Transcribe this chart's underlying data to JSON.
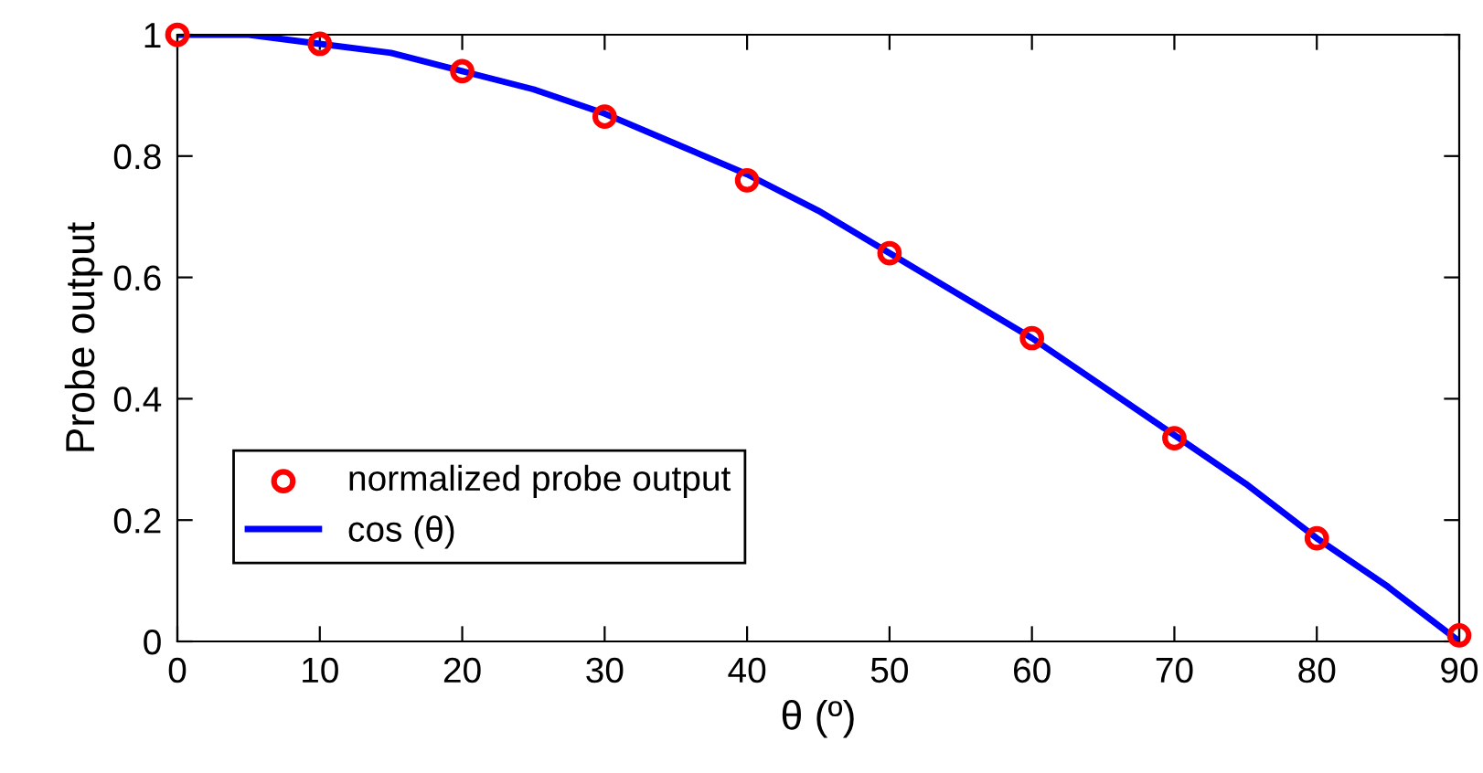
{
  "chart_data": {
    "type": "line",
    "xlabel": "θ (º)",
    "ylabel": "Probe output",
    "xlim": [
      0,
      90
    ],
    "ylim": [
      0,
      1
    ],
    "xticks": [
      0,
      10,
      20,
      30,
      40,
      50,
      60,
      70,
      80,
      90
    ],
    "yticks": [
      0,
      0.2,
      0.4,
      0.6,
      0.8,
      1
    ],
    "grid": false,
    "legend": "bottom left",
    "series": [
      {
        "name": "normalized probe output",
        "type": "scatter",
        "marker": "circle",
        "color": "#ff0000",
        "x": [
          0,
          10,
          20,
          30,
          40,
          50,
          60,
          70,
          80,
          90
        ],
        "values": [
          1.0,
          0.985,
          0.94,
          0.865,
          0.76,
          0.64,
          0.5,
          0.335,
          0.17,
          0.01
        ]
      },
      {
        "name": "cos (θ)",
        "marker": "none",
        "line_style": "solid",
        "color": "#0000ff",
        "x": [
          0,
          5,
          10,
          15,
          20,
          25,
          30,
          35,
          40,
          45,
          50,
          55,
          60,
          65,
          70,
          75,
          80,
          85,
          90
        ],
        "values": [
          1.0,
          1.0,
          0.985,
          0.97,
          0.94,
          0.91,
          0.87,
          0.82,
          0.77,
          0.71,
          0.64,
          0.57,
          0.5,
          0.42,
          0.34,
          0.26,
          0.17,
          0.09,
          0.0
        ]
      }
    ]
  }
}
